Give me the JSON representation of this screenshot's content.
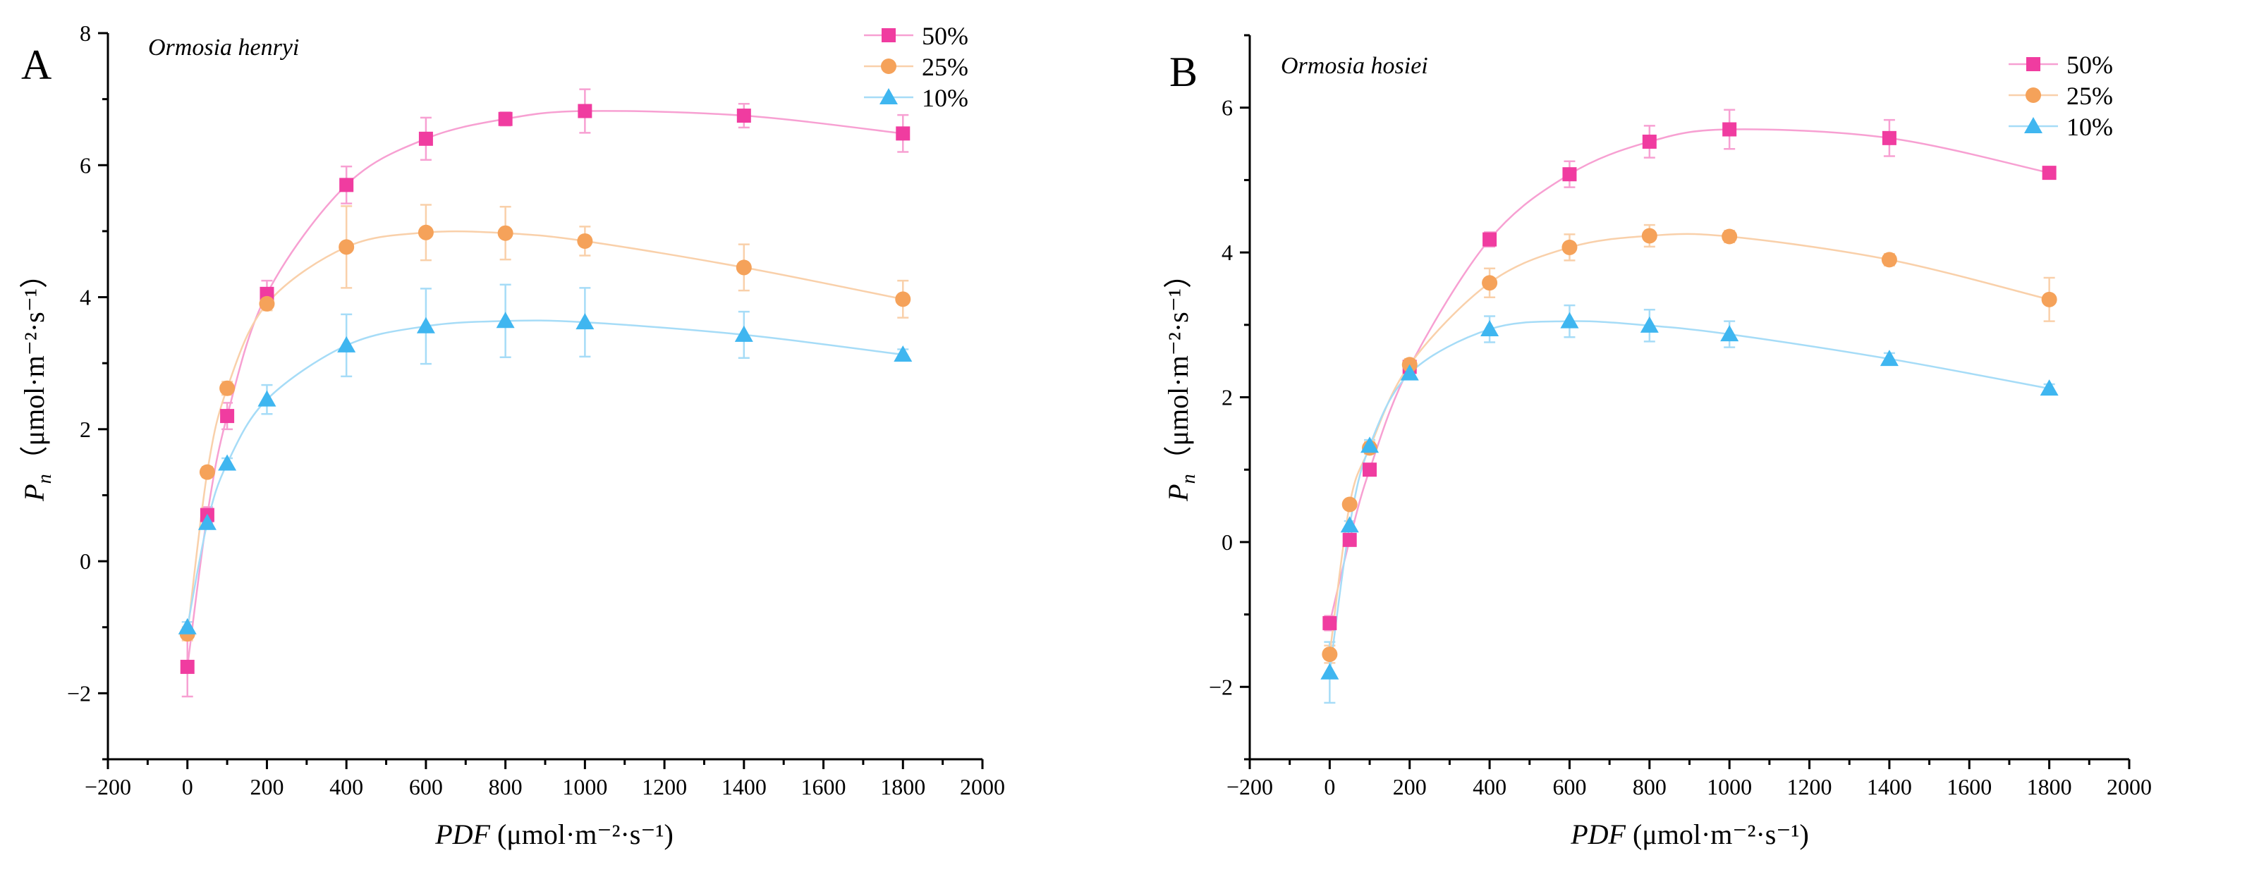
{
  "chart_data": [
    {
      "type": "line",
      "panel_label": "A",
      "title": "Ormosia henryi",
      "xlabel_italic": "PDF",
      "xlabel_unit": " (μmol·m⁻²·s⁻¹)",
      "ylabel_italic": "P",
      "ylabel_sub": "n",
      "ylabel_unit": "（μmol·m⁻²·s⁻¹）",
      "xlim": [
        -200,
        2000
      ],
      "ylim": [
        -3,
        8
      ],
      "xticks": [
        -200,
        0,
        200,
        400,
        600,
        800,
        1000,
        1200,
        1400,
        1600,
        1800,
        2000
      ],
      "xtick_labels": [
        "−200",
        "0",
        "200",
        "400",
        "600",
        "800",
        "1000",
        "1200",
        "1400",
        "1600",
        "1800",
        "2000"
      ],
      "yticks": [
        -2,
        0,
        2,
        4,
        6,
        8
      ],
      "ytick_labels": [
        "−2",
        "0",
        "2",
        "4",
        "6",
        "8"
      ],
      "x": [
        0,
        50,
        100,
        200,
        400,
        600,
        800,
        1000,
        1400,
        1800
      ],
      "series": [
        {
          "name": "50%",
          "marker": "square",
          "color": "#f03ca0",
          "line_color": "#f7a0d2",
          "values": [
            -1.6,
            0.7,
            2.2,
            4.05,
            5.7,
            6.4,
            6.7,
            6.82,
            6.75,
            6.48
          ],
          "errors": [
            0.45,
            0.12,
            0.2,
            0.2,
            0.28,
            0.32,
            0.1,
            0.33,
            0.18,
            0.28
          ]
        },
        {
          "name": "25%",
          "marker": "circle",
          "color": "#f5a25a",
          "line_color": "#f9d0aa",
          "values": [
            -1.1,
            1.35,
            2.62,
            3.9,
            4.76,
            4.98,
            4.97,
            4.85,
            4.45,
            3.97
          ],
          "errors": [
            0.1,
            0.08,
            0.1,
            0.1,
            0.62,
            0.42,
            0.4,
            0.22,
            0.35,
            0.28
          ]
        },
        {
          "name": "10%",
          "marker": "triangle",
          "color": "#3fb6f0",
          "line_color": "#a6dcf7",
          "values": [
            -1.0,
            0.58,
            1.48,
            2.45,
            3.27,
            3.56,
            3.64,
            3.62,
            3.43,
            3.13
          ],
          "errors": [
            0.08,
            0.08,
            0.08,
            0.22,
            0.47,
            0.57,
            0.55,
            0.52,
            0.35,
            0.08
          ]
        }
      ]
    },
    {
      "type": "line",
      "panel_label": "B",
      "title": "Ormosia hosiei",
      "xlabel_italic": "PDF",
      "xlabel_unit": " (μmol·m⁻²·s⁻¹)",
      "ylabel_italic": "P",
      "ylabel_sub": "n",
      "ylabel_unit": "（μmol·m⁻²·s⁻¹）",
      "xlim": [
        -200,
        2000
      ],
      "ylim": [
        -3,
        7
      ],
      "xticks": [
        -200,
        0,
        200,
        400,
        600,
        800,
        1000,
        1200,
        1400,
        1600,
        1800,
        2000
      ],
      "xtick_labels": [
        "−200",
        "0",
        "200",
        "400",
        "600",
        "800",
        "1000",
        "1200",
        "1400",
        "1600",
        "1800",
        "2000"
      ],
      "yticks": [
        -2,
        0,
        2,
        4,
        6
      ],
      "ytick_labels": [
        "−2",
        "0",
        "2",
        "4",
        "6"
      ],
      "x": [
        0,
        50,
        100,
        200,
        400,
        600,
        800,
        1000,
        1400,
        1800
      ],
      "series": [
        {
          "name": "50%",
          "marker": "square",
          "color": "#f03ca0",
          "line_color": "#f7a0d2",
          "values": [
            -1.12,
            0.03,
            1.0,
            2.42,
            4.18,
            5.08,
            5.53,
            5.7,
            5.58,
            5.1
          ],
          "errors": [
            0.1,
            0.06,
            0.08,
            0.08,
            0.1,
            0.18,
            0.22,
            0.27,
            0.25,
            0.05
          ]
        },
        {
          "name": "25%",
          "marker": "circle",
          "color": "#f5a25a",
          "line_color": "#f9d0aa",
          "values": [
            -1.55,
            0.52,
            1.3,
            2.45,
            3.58,
            4.07,
            4.23,
            4.22,
            3.9,
            3.35
          ],
          "errors": [
            0.12,
            0.06,
            0.08,
            0.08,
            0.2,
            0.18,
            0.15,
            0.08,
            0.08,
            0.3
          ]
        },
        {
          "name": "10%",
          "marker": "triangle",
          "color": "#3fb6f0",
          "line_color": "#a6dcf7",
          "values": [
            -1.8,
            0.23,
            1.33,
            2.33,
            2.94,
            3.05,
            2.99,
            2.87,
            2.53,
            2.12
          ],
          "errors": [
            0.42,
            0.06,
            0.08,
            0.08,
            0.18,
            0.22,
            0.22,
            0.18,
            0.08,
            0.06
          ]
        }
      ]
    }
  ]
}
